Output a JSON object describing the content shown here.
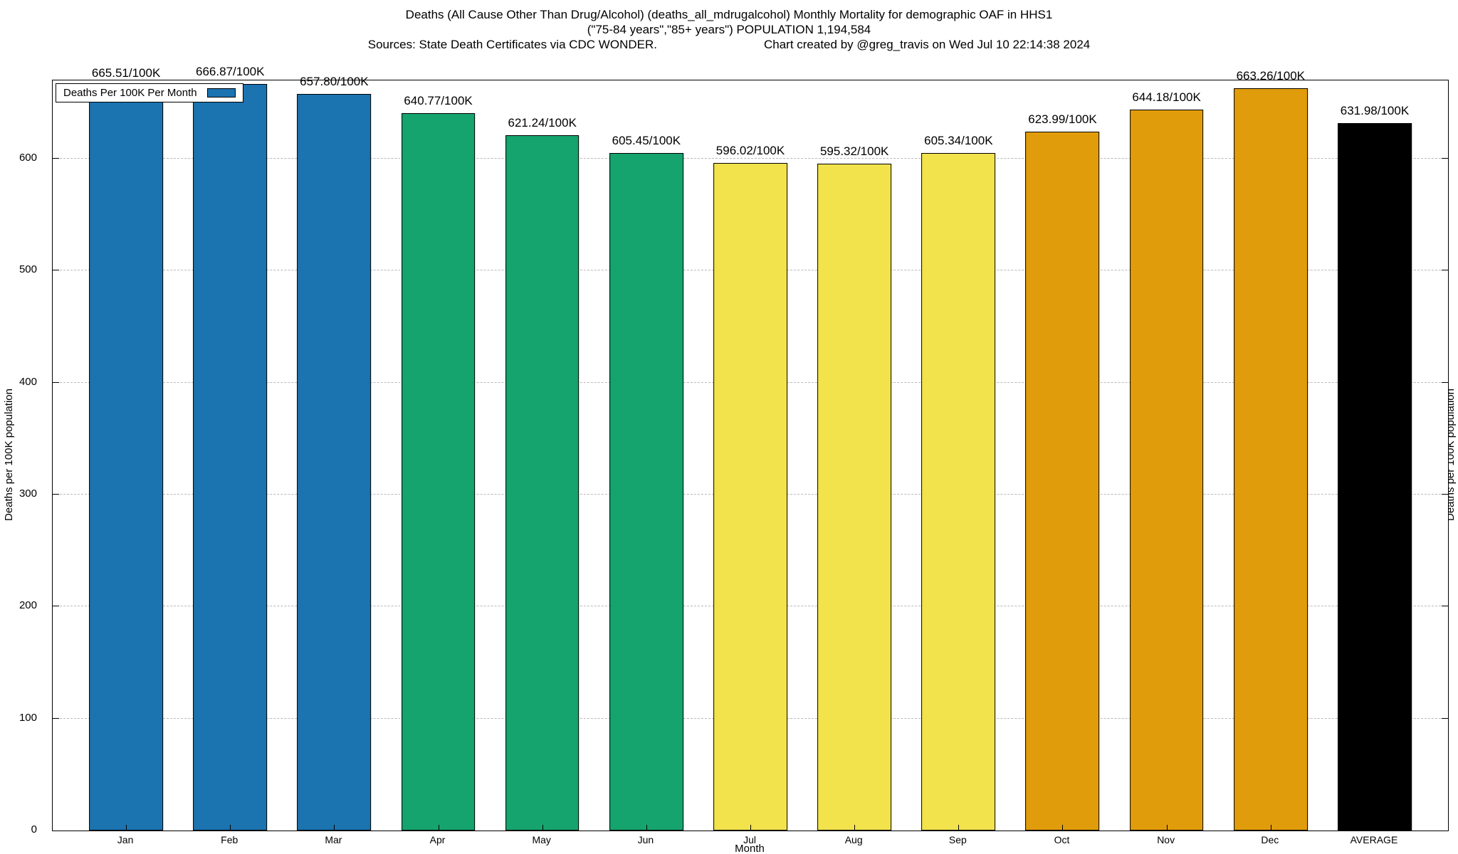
{
  "title": {
    "line1": "Deaths (All Cause Other Than Drug/Alcohol) (deaths_all_mdrugalcohol) Monthly Mortality for demographic OAF in HHS1",
    "line2": "(\"75-84 years\",\"85+ years\") POPULATION 1,194,584",
    "line3_left": "Sources: State Death Certificates via CDC WONDER.",
    "line3_right": "Chart created by @greg_travis on Wed Jul 10 22:14:38 2024"
  },
  "legend": {
    "label": "Deaths Per 100K Per Month",
    "swatch_color": "#1b73b0"
  },
  "axes": {
    "ylabel_left": "Deaths per 100K population",
    "ylabel_right": "Deaths per 100K population",
    "xlabel": "Month",
    "yticks": [
      0,
      100,
      200,
      300,
      400,
      500,
      600
    ],
    "ymax": 670
  },
  "chart_data": {
    "type": "bar",
    "title": "Deaths (All Cause Other Than Drug/Alcohol) (deaths_all_mdrugalcohol) Monthly Mortality for demographic OAF in HHS1 (\"75-84 years\",\"85+ years\") POPULATION 1,194,584",
    "source_note": "Sources: State Death Certificates via CDC WONDER.",
    "credit_note": "Chart created by @greg_travis on Wed Jul 10 22:14:38 2024",
    "legend_entry": "Deaths Per 100K Per Month",
    "legend_position": "top-left",
    "grid": true,
    "xlabel": "Month",
    "ylabel": "Deaths per 100K population",
    "ylim": [
      0,
      670
    ],
    "yticks": [
      0,
      100,
      200,
      300,
      400,
      500,
      600
    ],
    "categories": [
      "Jan",
      "Feb",
      "Mar",
      "Apr",
      "May",
      "Jun",
      "Jul",
      "Aug",
      "Sep",
      "Oct",
      "Nov",
      "Dec",
      "AVERAGE"
    ],
    "values": [
      665.51,
      666.87,
      657.8,
      640.77,
      621.24,
      605.45,
      596.02,
      595.32,
      605.34,
      623.99,
      644.18,
      663.26,
      631.98
    ],
    "bar_labels": [
      "665.51/100K",
      "666.87/100K",
      "657.80/100K",
      "640.77/100K",
      "621.24/100K",
      "605.45/100K",
      "596.02/100K",
      "595.32/100K",
      "605.34/100K",
      "623.99/100K",
      "644.18/100K",
      "663.26/100K",
      "631.98/100K"
    ],
    "bar_colors": [
      "#1b73b0",
      "#1b73b0",
      "#1b73b0",
      "#16a46e",
      "#16a46e",
      "#16a46e",
      "#f2e24c",
      "#f2e24c",
      "#f2e24c",
      "#e09c0a",
      "#e09c0a",
      "#e09c0a",
      "#000000"
    ]
  }
}
